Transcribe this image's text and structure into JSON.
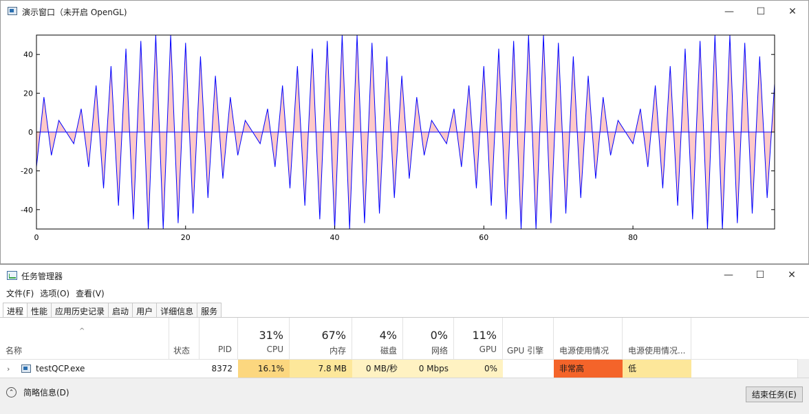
{
  "chart_window": {
    "title": "演示窗口（未开启 OpenGL)",
    "controls": {
      "minimize": "—",
      "maximize": "☐",
      "close": "✕"
    }
  },
  "chart_data": {
    "type": "line",
    "x_ticks": [
      "0",
      "20",
      "40",
      "60",
      "80"
    ],
    "y_ticks": [
      "40",
      "20",
      "0",
      "-20",
      "-40"
    ],
    "xlim": [
      0,
      99
    ],
    "ylim": [
      -50,
      50
    ],
    "line_color": "#0000ff",
    "fill_color": "#ffc0c0",
    "series": [
      {
        "x": [
          0,
          1,
          2,
          3,
          4,
          5,
          6,
          7,
          8,
          9,
          10,
          11,
          12,
          13,
          14,
          15,
          16,
          17,
          18,
          19,
          20,
          21,
          22,
          23,
          24,
          25,
          26,
          27,
          28,
          29,
          30,
          31,
          32,
          33,
          34,
          35,
          36,
          37,
          38,
          39,
          40,
          41,
          42,
          43,
          44,
          45,
          46,
          47,
          48,
          49,
          50,
          51,
          52,
          53,
          54,
          55,
          56,
          57,
          58,
          59,
          60,
          61,
          62,
          63,
          64,
          65,
          66,
          67,
          68,
          69,
          70,
          71,
          72,
          73,
          74,
          75,
          76,
          77,
          78,
          79,
          80,
          81,
          82,
          83,
          84,
          85,
          86,
          87,
          88,
          89,
          90,
          91,
          92,
          93,
          94,
          95,
          96,
          97,
          98,
          99
        ],
        "y": [
          -18,
          18,
          -12,
          6,
          0,
          -6,
          12,
          -18,
          24,
          -29,
          34,
          -38,
          43,
          -45,
          47,
          -50,
          50,
          -50,
          50,
          -47,
          46,
          -42,
          39,
          -34,
          29,
          -24,
          18,
          -12,
          6,
          0,
          -6,
          12,
          -18,
          24,
          -29,
          34,
          -38,
          43,
          -45,
          47,
          -50,
          50,
          -50,
          50,
          -47,
          46,
          -42,
          39,
          -34,
          29,
          -24,
          18,
          -12,
          6,
          0,
          -6,
          12,
          -18,
          24,
          -29,
          34,
          -38,
          43,
          -45,
          47,
          -50,
          50,
          -50,
          50,
          -47,
          46,
          -42,
          39,
          -34,
          29,
          -24,
          18,
          -12,
          6,
          0,
          -6,
          12,
          -18,
          24,
          -29,
          34,
          -38,
          43,
          -45,
          47,
          -50,
          50,
          -50,
          50,
          -47,
          46,
          -42,
          39,
          -34,
          25
        ]
      }
    ]
  },
  "taskmgr": {
    "title": "任务管理器",
    "controls": {
      "minimize": "—",
      "maximize": "☐",
      "close": "✕"
    },
    "menu": [
      "文件(F)",
      "选项(O)",
      "查看(V)"
    ],
    "tabs": [
      "进程",
      "性能",
      "应用历史记录",
      "启动",
      "用户",
      "详细信息",
      "服务"
    ],
    "sort_caret": "^",
    "columns": {
      "name": "名称",
      "status": "状态",
      "pid": "PID",
      "cpu": "CPU",
      "cpu_pct": "31%",
      "mem": "内存",
      "mem_pct": "67%",
      "disk": "磁盘",
      "disk_pct": "4%",
      "net": "网络",
      "net_pct": "0%",
      "gpu": "GPU",
      "gpu_pct": "11%",
      "gpu_engine": "GPU 引擎",
      "power": "电源使用情况",
      "power_trend": "电源使用情况..."
    },
    "row": {
      "expander": "›",
      "name": "testQCP.exe",
      "status": "",
      "pid": "8372",
      "cpu": "16.1%",
      "mem": "7.8 MB",
      "disk": "0 MB/秒",
      "net": "0 Mbps",
      "gpu": "0%",
      "gpu_engine": "",
      "power": "非常高",
      "power_trend": "低"
    },
    "footer": {
      "fewer_details": "简略信息(D)",
      "end_task": "结束任务(E)",
      "circle_glyph": "⌃"
    }
  }
}
